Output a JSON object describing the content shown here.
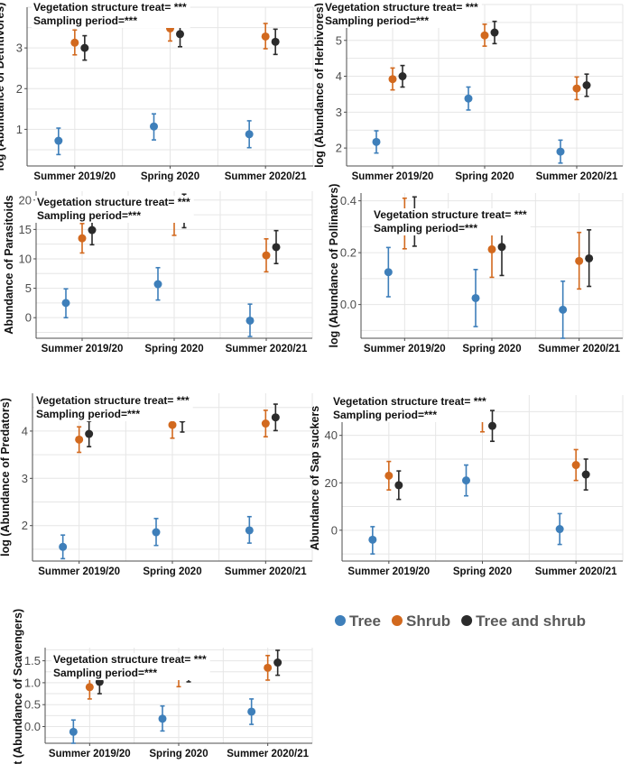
{
  "colors": {
    "tree": "#3e7fba",
    "shrub": "#d2691e",
    "tree_and_shrub": "#2b2b2b"
  },
  "legend": [
    {
      "key": "tree",
      "label": "Tree"
    },
    {
      "key": "shrub",
      "label": "Shrub"
    },
    {
      "key": "tree_and_shrub",
      "label": "Tree and shrub"
    }
  ],
  "chart_data": [
    {
      "type": "scatter",
      "ylabel": "log (Abundance of Detritivores)",
      "annotations": [
        "Vegetation structure treat= ***",
        "Sampling period=***"
      ],
      "categories": [
        "Summer 2019/20",
        "Spring 2020",
        "Summer 2020/21"
      ],
      "ylim": [
        0.1,
        4.0
      ],
      "yticks": [
        1,
        2,
        3
      ],
      "series": [
        {
          "name": "Tree",
          "values": [
            0.72,
            1.07,
            0.88
          ],
          "lower": [
            0.38,
            0.74,
            0.55
          ],
          "upper": [
            1.03,
            1.38,
            1.21
          ]
        },
        {
          "name": "Shrub",
          "values": [
            3.13,
            3.48,
            3.28
          ],
          "lower": [
            2.83,
            3.17,
            2.98
          ],
          "upper": [
            3.44,
            3.8,
            3.6
          ]
        },
        {
          "name": "Tree and shrub",
          "values": [
            3.0,
            3.34,
            3.15
          ],
          "lower": [
            2.7,
            3.03,
            2.84
          ],
          "upper": [
            3.3,
            3.65,
            3.46
          ]
        }
      ]
    },
    {
      "type": "scatter",
      "ylabel": "log (Abundance of Herbivores)",
      "annotations": [
        "Vegetation structure treat= ***",
        "Sampling period=***"
      ],
      "categories": [
        "Summer 2019/20",
        "Spring 2020",
        "Summer 2020/21"
      ],
      "ylim": [
        1.5,
        6.0
      ],
      "yticks": [
        2,
        3,
        4,
        5
      ],
      "series": [
        {
          "name": "Tree",
          "values": [
            2.17,
            3.38,
            1.9
          ],
          "lower": [
            1.86,
            3.06,
            1.58
          ],
          "upper": [
            2.48,
            3.7,
            2.22
          ]
        },
        {
          "name": "Shrub",
          "values": [
            3.92,
            5.14,
            3.66
          ],
          "lower": [
            3.62,
            4.84,
            3.35
          ],
          "upper": [
            4.23,
            5.45,
            3.98
          ]
        },
        {
          "name": "Tree and shrub",
          "values": [
            4.0,
            5.22,
            3.75
          ],
          "lower": [
            3.7,
            4.91,
            3.44
          ],
          "upper": [
            4.3,
            5.53,
            4.06
          ]
        }
      ]
    },
    {
      "type": "scatter",
      "ylabel": "Abundance of Parasitoids",
      "annotations": [
        "Vegetation structure treat= ***",
        "Sampling period=***"
      ],
      "categories": [
        "Summer 2019/20",
        "Spring 2020",
        "Summer 2020/21"
      ],
      "ylim": [
        -3.5,
        21.5
      ],
      "yticks": [
        0,
        5,
        10,
        15,
        20
      ],
      "series": [
        {
          "name": "Tree",
          "values": [
            2.5,
            5.7,
            -0.5
          ],
          "lower": [
            0.0,
            3.0,
            -3.2
          ],
          "upper": [
            4.9,
            8.5,
            2.3
          ]
        },
        {
          "name": "Shrub",
          "values": [
            13.5,
            16.8,
            10.6
          ],
          "lower": [
            11.0,
            14.0,
            7.8
          ],
          "upper": [
            16.0,
            19.6,
            13.4
          ]
        },
        {
          "name": "Tree and shrub",
          "values": [
            14.9,
            18.1,
            12.0
          ],
          "lower": [
            12.4,
            15.3,
            9.2
          ],
          "upper": [
            17.4,
            21.0,
            14.8
          ]
        }
      ]
    },
    {
      "type": "scatter",
      "ylabel": "log (Abundance of Pollinators)",
      "annotations": [
        "Vegetation structure treat= ***",
        "Sampling period=***"
      ],
      "categories": [
        "Summer 2019/20",
        "Spring 2020",
        "Summer 2020/21"
      ],
      "ylim": [
        -0.13,
        0.43
      ],
      "yticks": [
        0.0,
        0.2,
        0.4
      ],
      "series": [
        {
          "name": "Tree",
          "values": [
            0.125,
            0.025,
            -0.02
          ],
          "lower": [
            0.03,
            -0.085,
            -0.13
          ],
          "upper": [
            0.22,
            0.135,
            0.09
          ]
        },
        {
          "name": "Shrub",
          "values": [
            0.31,
            0.213,
            0.168
          ],
          "lower": [
            0.215,
            0.105,
            0.06
          ],
          "upper": [
            0.41,
            0.32,
            0.278
          ]
        },
        {
          "name": "Tree and shrub",
          "values": [
            0.32,
            0.222,
            0.178
          ],
          "lower": [
            0.225,
            0.112,
            0.07
          ],
          "upper": [
            0.415,
            0.33,
            0.288
          ]
        }
      ]
    },
    {
      "type": "scatter",
      "ylabel": "log (Abundance of Predators)",
      "annotations": [
        "Vegetation structure treat= ***",
        "Sampling period=***"
      ],
      "categories": [
        "Summer 2019/20",
        "Spring 2020",
        "Summer 2020/21"
      ],
      "ylim": [
        1.25,
        4.8
      ],
      "yticks": [
        2,
        3,
        4
      ],
      "series": [
        {
          "name": "Tree",
          "values": [
            1.55,
            1.86,
            1.9
          ],
          "lower": [
            1.3,
            1.58,
            1.63
          ],
          "upper": [
            1.8,
            2.15,
            2.19
          ]
        },
        {
          "name": "Shrub",
          "values": [
            3.82,
            4.13,
            4.16
          ],
          "lower": [
            3.55,
            3.85,
            3.88
          ],
          "upper": [
            4.09,
            4.41,
            4.44
          ]
        },
        {
          "name": "Tree and shrub",
          "values": [
            3.94,
            4.26,
            4.29
          ],
          "lower": [
            3.67,
            3.98,
            4.01
          ],
          "upper": [
            4.21,
            4.54,
            4.57
          ]
        }
      ]
    },
    {
      "type": "scatter",
      "ylabel": "Abundance of Sap suckers",
      "annotations": [
        "Vegetation structure treat= ***",
        "Sampling period=***"
      ],
      "categories": [
        "Summer 2019/20",
        "Spring 2020",
        "Summer 2020/21"
      ],
      "ylim": [
        -13,
        57
      ],
      "yticks": [
        0,
        20,
        40
      ],
      "series": [
        {
          "name": "Tree",
          "values": [
            -4.0,
            21.0,
            0.5
          ],
          "lower": [
            -10.0,
            14.5,
            -6.0
          ],
          "upper": [
            1.5,
            27.5,
            7.0
          ]
        },
        {
          "name": "Shrub",
          "values": [
            23.0,
            48.0,
            27.5
          ],
          "lower": [
            17.0,
            41.5,
            21.0
          ],
          "upper": [
            29.0,
            54.5,
            34.0
          ]
        },
        {
          "name": "Tree and shrub",
          "values": [
            19.0,
            44.0,
            23.5
          ],
          "lower": [
            13.0,
            37.5,
            17.0
          ],
          "upper": [
            25.0,
            50.5,
            30.0
          ]
        }
      ]
    },
    {
      "type": "scatter",
      "ylabel": "sqrt (Abundance of Scavengers)",
      "annotations": [
        "Vegetation structure treat= ***",
        "Sampling period=***"
      ],
      "categories": [
        "Summer 2019/20",
        "Spring 2020",
        "Summer 2020/21"
      ],
      "ylim": [
        -0.38,
        1.8
      ],
      "yticks": [
        0.0,
        0.5,
        1.0,
        1.5
      ],
      "series": [
        {
          "name": "Tree",
          "values": [
            -0.12,
            0.18,
            0.34
          ],
          "lower": [
            -0.38,
            -0.1,
            0.05
          ],
          "upper": [
            0.15,
            0.47,
            0.63
          ]
        },
        {
          "name": "Shrub",
          "values": [
            0.9,
            1.19,
            1.34
          ],
          "lower": [
            0.63,
            0.91,
            1.06
          ],
          "upper": [
            1.16,
            1.48,
            1.62
          ]
        },
        {
          "name": "Tree and shrub",
          "values": [
            1.02,
            1.31,
            1.46
          ],
          "lower": [
            0.75,
            1.02,
            1.17
          ],
          "upper": [
            1.29,
            1.59,
            1.74
          ]
        }
      ]
    }
  ]
}
